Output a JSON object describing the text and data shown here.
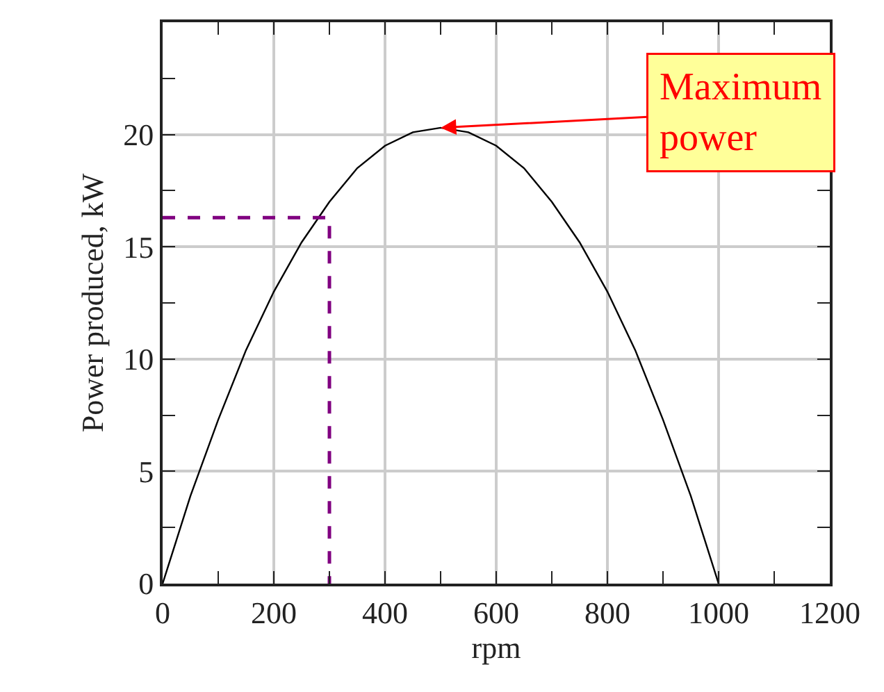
{
  "chart_data": {
    "type": "line",
    "xlabel": "rpm",
    "ylabel": "Power produced, kW",
    "xlim": [
      0,
      1200
    ],
    "xticks": [
      0,
      200,
      400,
      600,
      800,
      1000,
      1200
    ],
    "ylim": [
      0,
      25
    ],
    "yticks": [
      0,
      5,
      10,
      15,
      20
    ],
    "grid": true,
    "marker": "none",
    "series": [
      {
        "color": "#000000",
        "x": [
          0,
          50,
          100,
          150,
          200,
          250,
          300,
          350,
          400,
          450,
          500,
          550,
          600,
          650,
          700,
          750,
          800,
          850,
          900,
          950,
          1000
        ],
        "values": [
          0,
          3.9,
          7.3,
          10.4,
          13.0,
          15.2,
          17.0,
          18.5,
          19.5,
          20.1,
          20.3,
          20.1,
          19.5,
          18.5,
          17.0,
          15.2,
          13.0,
          10.4,
          7.3,
          3.9,
          0
        ]
      },
      {
        "color": "#800080",
        "line_style": "dashed",
        "x": [
          0,
          300,
          300
        ],
        "values": [
          16.3,
          16.3,
          0
        ]
      }
    ],
    "annotations": [
      {
        "text": "Maximum\npower",
        "x": 500,
        "y": 20.3
      }
    ]
  }
}
